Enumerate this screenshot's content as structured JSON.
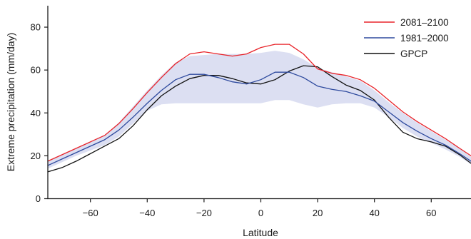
{
  "chart_data": {
    "type": "line",
    "title": "",
    "xlabel": "Latitude",
    "ylabel": "Extreme precipitation (mm/day)",
    "xlim": [
      -75,
      74
    ],
    "ylim": [
      0,
      90
    ],
    "x_ticks": [
      -60,
      -40,
      -20,
      0,
      20,
      40,
      60
    ],
    "y_ticks": [
      0,
      20,
      40,
      60,
      80
    ],
    "x_tick_labels": [
      "−60",
      "−40",
      "−20",
      "0",
      "20",
      "40",
      "60"
    ],
    "y_tick_labels": [
      "0",
      "20",
      "40",
      "60",
      "80"
    ],
    "grid": false,
    "legend_position": "top-right",
    "x": [
      -75,
      -70,
      -65,
      -60,
      -55,
      -50,
      -45,
      -40,
      -35,
      -30,
      -25,
      -20,
      -15,
      -10,
      -5,
      0,
      5,
      10,
      15,
      20,
      25,
      30,
      35,
      40,
      45,
      50,
      55,
      60,
      65,
      70,
      74
    ],
    "series": [
      {
        "name": "2081–2100",
        "color": "#e8242a",
        "values": [
          17.5,
          20.5,
          23.5,
          26.5,
          29.5,
          35,
          42,
          49.5,
          56.5,
          63,
          67.5,
          68.5,
          67.5,
          66.5,
          67.5,
          70.5,
          72,
          72,
          67.5,
          60.5,
          58.5,
          57.5,
          55.5,
          51.5,
          46,
          40.5,
          36,
          32,
          28,
          23.5,
          20
        ]
      },
      {
        "name": "1981–2000",
        "color": "#2e4a9e",
        "values": [
          15.5,
          18.5,
          21.5,
          24.5,
          27.5,
          32,
          38,
          44.5,
          50.5,
          55.5,
          58,
          58,
          56.5,
          54.5,
          53.5,
          55.5,
          59,
          59,
          56.5,
          52.5,
          51,
          50,
          48,
          45.5,
          40.5,
          35.5,
          31.5,
          28,
          25,
          21,
          17.5
        ]
      },
      {
        "name": "GPCP",
        "color": "#111111",
        "values": [
          12.5,
          14.5,
          17.5,
          21,
          24.5,
          28,
          34,
          41.5,
          48,
          52.5,
          56,
          57.5,
          57.5,
          56,
          54,
          53.5,
          55.5,
          59.5,
          62,
          61.5,
          57,
          53,
          50.5,
          46,
          38,
          31,
          28,
          26.5,
          24.5,
          20.5,
          16.5
        ]
      }
    ],
    "range_band": {
      "color": "#dcdff2",
      "lower": [
        14,
        17,
        20,
        22.5,
        25,
        29,
        35,
        41,
        44,
        44.5,
        44.5,
        44.5,
        44.5,
        44.5,
        44.5,
        44.5,
        46,
        46,
        44,
        42.5,
        44,
        44.5,
        44.5,
        42.5,
        38,
        33,
        29,
        26,
        23,
        19.5,
        16
      ],
      "upper": [
        17.5,
        20.5,
        23.5,
        26.5,
        29.5,
        35.5,
        43,
        50.5,
        57.5,
        63.5,
        66.5,
        67,
        67.5,
        67.5,
        67.5,
        68,
        69,
        68,
        65,
        61,
        59,
        57,
        55,
        50.5,
        45,
        40,
        35.5,
        31.5,
        27.5,
        23.5,
        19.5
      ]
    }
  }
}
